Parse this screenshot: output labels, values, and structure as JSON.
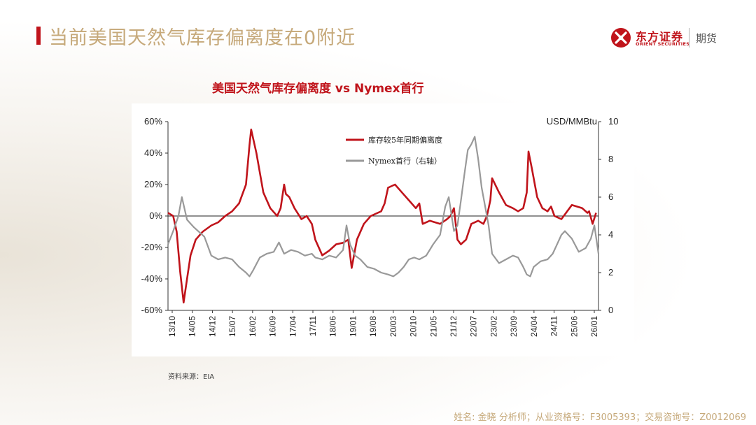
{
  "page": {
    "title": "当前美国天然气库存偏离度在0附近",
    "source": "资料来源：EIA",
    "footer": "姓名: 金晓 分析师；从业资格号：F3005393；交易咨询号：Z0012069"
  },
  "logo": {
    "name_cn": "东方证券",
    "name_en": "ORIENT SECURITIES",
    "division": "期货",
    "color": "#c0141b"
  },
  "chart_data": {
    "type": "line",
    "title": "美国天然气库存偏离度 vs Nymex首行",
    "x_tick_labels": [
      "13/10",
      "14/05",
      "14/12",
      "15/07",
      "16/02",
      "16/09",
      "17/04",
      "17/11",
      "18/06",
      "19/01",
      "19/08",
      "20/03",
      "20/10",
      "21/05",
      "21/12",
      "22/07",
      "23/02",
      "23/09",
      "24/04",
      "24/11",
      "25/06",
      "26/01"
    ],
    "x_range": [
      2013.75,
      2026.17
    ],
    "y_left": {
      "ticks": [
        "60%",
        "40%",
        "20%",
        "0%",
        "-20%",
        "-40%",
        "-60%"
      ],
      "range": [
        -60,
        60
      ]
    },
    "y_right": {
      "label": "USD/MMBtu",
      "ticks": [
        "10",
        "8",
        "6",
        "4",
        "2",
        "0"
      ],
      "range": [
        0,
        10
      ]
    },
    "legend_position": "top-center",
    "grid": false,
    "series": [
      {
        "name": "库存较5年同期偏离度",
        "axis": "left",
        "color": "#c0141b",
        "x": [
          2013.75,
          2013.9,
          2014.0,
          2014.1,
          2014.2,
          2014.3,
          2014.4,
          2014.55,
          2014.75,
          2015.0,
          2015.2,
          2015.4,
          2015.6,
          2015.8,
          2016.0,
          2016.1,
          2016.15,
          2016.3,
          2016.5,
          2016.7,
          2016.9,
          2017.0,
          2017.1,
          2017.15,
          2017.25,
          2017.4,
          2017.6,
          2017.75,
          2017.9,
          2018.0,
          2018.2,
          2018.4,
          2018.6,
          2018.8,
          2018.95,
          2019.05,
          2019.2,
          2019.4,
          2019.6,
          2019.8,
          2019.9,
          2020.0,
          2020.1,
          2020.3,
          2020.5,
          2020.7,
          2020.9,
          2021.0,
          2021.1,
          2021.3,
          2021.6,
          2021.8,
          2021.9,
          2022.0,
          2022.1,
          2022.2,
          2022.35,
          2022.5,
          2022.7,
          2022.85,
          2022.95,
          2023.05,
          2023.1,
          2023.3,
          2023.5,
          2023.7,
          2023.85,
          2024.0,
          2024.1,
          2024.15,
          2024.25,
          2024.4,
          2024.55,
          2024.7,
          2024.8,
          2024.9,
          2025.1,
          2025.4,
          2025.7,
          2025.85,
          2025.9,
          2026.0,
          2026.1
        ],
        "y": [
          2,
          0,
          -10,
          -35,
          -55,
          -40,
          -25,
          -15,
          -10,
          -6,
          -4,
          0,
          3,
          8,
          20,
          45,
          55,
          40,
          15,
          5,
          0,
          5,
          20,
          14,
          12,
          5,
          -2,
          0,
          -5,
          -15,
          -25,
          -22,
          -18,
          -17,
          -15,
          -33,
          -15,
          -5,
          0,
          2,
          3,
          8,
          18,
          20,
          15,
          10,
          5,
          8,
          -5,
          -3,
          -5,
          -2,
          0,
          5,
          -15,
          -18,
          -15,
          -5,
          -3,
          -5,
          0,
          10,
          24,
          15,
          7,
          5,
          3,
          5,
          15,
          41,
          30,
          12,
          5,
          3,
          6,
          0,
          -2,
          7,
          5,
          2,
          3,
          -5,
          2
        ]
      },
      {
        "name": "Nymex首行（右轴）",
        "axis": "right",
        "color": "#999999",
        "x": [
          2013.75,
          2013.9,
          2014.05,
          2014.15,
          2014.3,
          2014.5,
          2014.8,
          2015.0,
          2015.2,
          2015.4,
          2015.6,
          2015.8,
          2016.0,
          2016.1,
          2016.2,
          2016.4,
          2016.6,
          2016.8,
          2016.95,
          2017.1,
          2017.3,
          2017.5,
          2017.7,
          2017.9,
          2018.0,
          2018.2,
          2018.4,
          2018.6,
          2018.8,
          2018.9,
          2019.0,
          2019.15,
          2019.3,
          2019.5,
          2019.7,
          2019.9,
          2020.1,
          2020.25,
          2020.4,
          2020.55,
          2020.7,
          2020.85,
          2021.0,
          2021.2,
          2021.4,
          2021.6,
          2021.75,
          2021.85,
          2022.0,
          2022.1,
          2022.2,
          2022.3,
          2022.4,
          2022.5,
          2022.6,
          2022.7,
          2022.8,
          2022.9,
          2023.0,
          2023.1,
          2023.3,
          2023.5,
          2023.7,
          2023.85,
          2024.0,
          2024.1,
          2024.2,
          2024.3,
          2024.5,
          2024.7,
          2024.85,
          2024.95,
          2025.1,
          2025.2,
          2025.4,
          2025.6,
          2025.8,
          2025.95,
          2026.05,
          2026.17
        ],
        "y": [
          3.5,
          4.2,
          5.0,
          6.0,
          4.8,
          4.4,
          3.9,
          2.9,
          2.7,
          2.8,
          2.7,
          2.3,
          2.0,
          1.8,
          2.1,
          2.8,
          3.0,
          3.1,
          3.6,
          3.0,
          3.2,
          3.1,
          2.9,
          3.0,
          2.8,
          2.7,
          2.9,
          2.8,
          3.2,
          4.5,
          3.5,
          2.9,
          2.7,
          2.3,
          2.2,
          2.0,
          1.9,
          1.8,
          2.0,
          2.3,
          2.7,
          2.8,
          2.7,
          2.9,
          3.5,
          4.0,
          5.5,
          6.0,
          4.2,
          4.5,
          5.8,
          7.2,
          8.5,
          8.8,
          9.2,
          8.0,
          6.5,
          5.5,
          4.5,
          3.0,
          2.5,
          2.7,
          2.9,
          2.8,
          2.3,
          1.9,
          1.8,
          2.3,
          2.6,
          2.7,
          3.0,
          3.4,
          4.0,
          4.2,
          3.8,
          3.1,
          3.3,
          3.8,
          4.5,
          3.0
        ]
      }
    ]
  }
}
